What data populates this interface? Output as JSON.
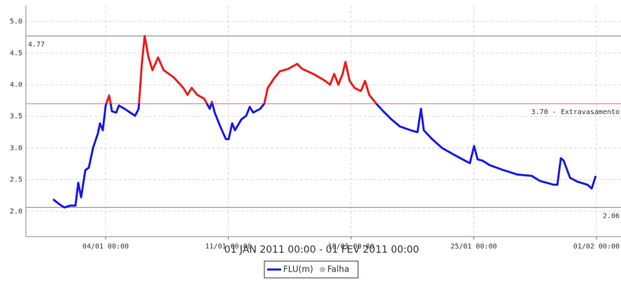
{
  "chart_data": {
    "type": "line",
    "subtitle": "01 JAN 2011 00:00 - 01 FEV 2011 00:00",
    "xlim": [
      -1.55,
      32.4
    ],
    "ylim": [
      1.6,
      5.25
    ],
    "xticks": [
      {
        "value": 3,
        "label": "04/01 00:00"
      },
      {
        "value": 10,
        "label": "11/01 00:00"
      },
      {
        "value": 17,
        "label": "18/01 00:00"
      },
      {
        "value": 24,
        "label": "25/01 00:00"
      },
      {
        "value": 31,
        "label": "01/02 00:00"
      }
    ],
    "yticks": [
      {
        "value": 2,
        "label": "2.0"
      },
      2.5,
      {
        "value": 3,
        "label": "3.0"
      },
      3.5,
      {
        "value": 4,
        "label": "4.0"
      },
      4.5,
      {
        "value": 5,
        "label": "5.0"
      }
    ],
    "grid": true,
    "threshold": 3.7,
    "above_color": "#ee1c1c",
    "reference_lines": [
      {
        "value": 4.77,
        "label": "4.77",
        "color": "#999999",
        "side": "left"
      },
      {
        "value": 3.7,
        "label": "3.70 - Extravasamento",
        "color": "#f08080",
        "side": "right"
      },
      {
        "value": 2.06,
        "label": "2.06",
        "color": "#999999",
        "side": "right"
      }
    ],
    "x": [
      0,
      0.37,
      0.65,
      0.97,
      1.28,
      1.44,
      1.6,
      1.84,
      2.04,
      2.28,
      2.56,
      2.68,
      2.84,
      3.0,
      3.2,
      3.36,
      3.6,
      3.76,
      4.08,
      4.4,
      4.68,
      4.88,
      5.07,
      5.23,
      5.43,
      5.67,
      5.99,
      6.31,
      6.87,
      7.43,
      7.67,
      7.91,
      8.23,
      8.62,
      8.94,
      9.06,
      9.22,
      9.54,
      9.86,
      10.02,
      10.22,
      10.38,
      10.74,
      11.02,
      11.22,
      11.42,
      11.82,
      12.05,
      12.25,
      12.61,
      12.93,
      13.41,
      13.93,
      14.21,
      14.85,
      15.53,
      15.8,
      16.04,
      16.28,
      16.52,
      16.68,
      16.92,
      17.2,
      17.56,
      17.8,
      18.04,
      18.44,
      18.84,
      19.31,
      19.79,
      20.51,
      20.79,
      20.99,
      21.15,
      21.63,
      22.19,
      22.9,
      23.5,
      23.78,
      24.02,
      24.22,
      24.5,
      24.9,
      25.7,
      26.5,
      27.3,
      27.77,
      28.57,
      28.77,
      28.97,
      29.13,
      29.49,
      29.89,
      30.49,
      30.73,
      30.96
    ],
    "series": [
      {
        "name": "FLU(m)",
        "color": "#1a1ae6",
        "values": [
          2.19,
          2.11,
          2.06,
          2.09,
          2.09,
          2.45,
          2.22,
          2.65,
          2.69,
          3.0,
          3.23,
          3.39,
          3.28,
          3.67,
          3.83,
          3.58,
          3.56,
          3.67,
          3.62,
          3.56,
          3.51,
          3.62,
          4.34,
          4.77,
          4.45,
          4.23,
          4.43,
          4.23,
          4.12,
          3.95,
          3.84,
          3.95,
          3.84,
          3.78,
          3.62,
          3.73,
          3.56,
          3.34,
          3.14,
          3.14,
          3.39,
          3.28,
          3.45,
          3.51,
          3.65,
          3.56,
          3.62,
          3.7,
          3.95,
          4.1,
          4.21,
          4.25,
          4.33,
          4.25,
          4.17,
          4.06,
          4.0,
          4.17,
          4.0,
          4.17,
          4.36,
          4.06,
          3.95,
          3.9,
          4.06,
          3.84,
          3.7,
          3.58,
          3.45,
          3.34,
          3.27,
          3.25,
          3.62,
          3.28,
          3.14,
          3.0,
          2.89,
          2.8,
          2.76,
          3.03,
          2.82,
          2.8,
          2.73,
          2.65,
          2.58,
          2.56,
          2.48,
          2.42,
          2.42,
          2.84,
          2.8,
          2.53,
          2.47,
          2.42,
          2.36,
          2.56
        ]
      }
    ],
    "missing_legend": {
      "name": "Falha",
      "color": "#c0c0c0"
    }
  }
}
